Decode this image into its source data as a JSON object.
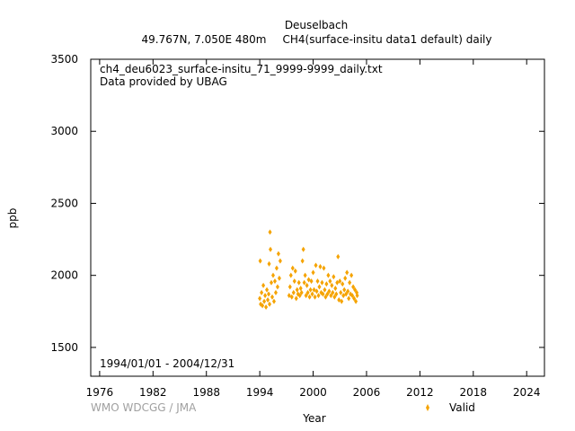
{
  "header": {
    "station": "Deuselbach",
    "location": "49.767N, 7.050E 480m",
    "dataset": "CH4(surface-insitu data1 default) daily"
  },
  "plot_notes": {
    "file": "ch4_deu6023_surface-insitu_71_9999-9999_daily.txt",
    "provider": "Data provided by UBAG",
    "period": "1994/01/01 - 2004/12/31"
  },
  "footer": {
    "credit": "WMO WDCGG / JMA"
  },
  "colors": {
    "series": "#f5a300",
    "axis": "#000000",
    "credit": "#a0a0a0"
  },
  "chart_data": {
    "type": "scatter",
    "xlabel": "Year",
    "ylabel": "ppb",
    "xlim": [
      1975,
      2026
    ],
    "ylim": [
      1300,
      3500
    ],
    "x_ticks": [
      1976,
      1982,
      1988,
      1994,
      2000,
      2006,
      2012,
      2018,
      2024
    ],
    "y_ticks": [
      1500,
      2000,
      2500,
      3000,
      3500
    ],
    "grid": false,
    "legend_position": "bottom-right",
    "series": [
      {
        "name": "Valid",
        "marker": "diamond",
        "points": [
          {
            "x": 1994.0,
            "y": 1840
          },
          {
            "x": 1994.05,
            "y": 2100
          },
          {
            "x": 1994.1,
            "y": 1800
          },
          {
            "x": 1994.2,
            "y": 1880
          },
          {
            "x": 1994.3,
            "y": 1790
          },
          {
            "x": 1994.4,
            "y": 1930
          },
          {
            "x": 1994.5,
            "y": 1820
          },
          {
            "x": 1994.6,
            "y": 1860
          },
          {
            "x": 1994.7,
            "y": 1780
          },
          {
            "x": 1994.8,
            "y": 1900
          },
          {
            "x": 1994.9,
            "y": 1830
          },
          {
            "x": 1995.0,
            "y": 1870
          },
          {
            "x": 1995.05,
            "y": 2080
          },
          {
            "x": 1995.1,
            "y": 1800
          },
          {
            "x": 1995.15,
            "y": 2300
          },
          {
            "x": 1995.2,
            "y": 2180
          },
          {
            "x": 1995.3,
            "y": 1950
          },
          {
            "x": 1995.4,
            "y": 1850
          },
          {
            "x": 1995.5,
            "y": 2000
          },
          {
            "x": 1995.6,
            "y": 1820
          },
          {
            "x": 1995.7,
            "y": 1960
          },
          {
            "x": 1995.8,
            "y": 1880
          },
          {
            "x": 1995.9,
            "y": 2050
          },
          {
            "x": 1996.0,
            "y": 1920
          },
          {
            "x": 1996.1,
            "y": 2150
          },
          {
            "x": 1996.2,
            "y": 1980
          },
          {
            "x": 1996.3,
            "y": 2100
          },
          {
            "x": 1997.3,
            "y": 1860
          },
          {
            "x": 1997.4,
            "y": 1920
          },
          {
            "x": 1997.5,
            "y": 2000
          },
          {
            "x": 1997.6,
            "y": 1850
          },
          {
            "x": 1997.7,
            "y": 2050
          },
          {
            "x": 1997.8,
            "y": 1880
          },
          {
            "x": 1997.9,
            "y": 1960
          },
          {
            "x": 1998.0,
            "y": 2030
          },
          {
            "x": 1998.1,
            "y": 1840
          },
          {
            "x": 1998.2,
            "y": 1900
          },
          {
            "x": 1998.3,
            "y": 1870
          },
          {
            "x": 1998.4,
            "y": 1950
          },
          {
            "x": 1998.5,
            "y": 1860
          },
          {
            "x": 1998.6,
            "y": 1910
          },
          {
            "x": 1998.7,
            "y": 1880
          },
          {
            "x": 1998.8,
            "y": 2100
          },
          {
            "x": 1998.9,
            "y": 2180
          },
          {
            "x": 1999.0,
            "y": 1950
          },
          {
            "x": 1999.1,
            "y": 2000
          },
          {
            "x": 1999.2,
            "y": 1860
          },
          {
            "x": 1999.3,
            "y": 1930
          },
          {
            "x": 1999.4,
            "y": 1880
          },
          {
            "x": 1999.5,
            "y": 1970
          },
          {
            "x": 1999.6,
            "y": 1850
          },
          {
            "x": 1999.7,
            "y": 1900
          },
          {
            "x": 1999.8,
            "y": 1960
          },
          {
            "x": 1999.9,
            "y": 1870
          },
          {
            "x": 2000.0,
            "y": 2020
          },
          {
            "x": 2000.1,
            "y": 1900
          },
          {
            "x": 2000.2,
            "y": 1850
          },
          {
            "x": 2000.3,
            "y": 2070
          },
          {
            "x": 2000.4,
            "y": 1890
          },
          {
            "x": 2000.5,
            "y": 1960
          },
          {
            "x": 2000.6,
            "y": 1860
          },
          {
            "x": 2000.7,
            "y": 1920
          },
          {
            "x": 2000.8,
            "y": 2060
          },
          {
            "x": 2000.9,
            "y": 1880
          },
          {
            "x": 2001.0,
            "y": 1950
          },
          {
            "x": 2001.1,
            "y": 1870
          },
          {
            "x": 2001.2,
            "y": 2050
          },
          {
            "x": 2001.3,
            "y": 1900
          },
          {
            "x": 2001.4,
            "y": 1850
          },
          {
            "x": 2001.5,
            "y": 1940
          },
          {
            "x": 2001.6,
            "y": 1870
          },
          {
            "x": 2001.7,
            "y": 2000
          },
          {
            "x": 2001.8,
            "y": 1890
          },
          {
            "x": 2001.9,
            "y": 1960
          },
          {
            "x": 2002.0,
            "y": 1860
          },
          {
            "x": 2002.1,
            "y": 1930
          },
          {
            "x": 2002.2,
            "y": 1880
          },
          {
            "x": 2002.3,
            "y": 1990
          },
          {
            "x": 2002.4,
            "y": 1850
          },
          {
            "x": 2002.5,
            "y": 1910
          },
          {
            "x": 2002.6,
            "y": 1870
          },
          {
            "x": 2002.7,
            "y": 1950
          },
          {
            "x": 2002.8,
            "y": 2130
          },
          {
            "x": 2002.9,
            "y": 1830
          },
          {
            "x": 2003.0,
            "y": 1960
          },
          {
            "x": 2003.1,
            "y": 1880
          },
          {
            "x": 2003.2,
            "y": 1820
          },
          {
            "x": 2003.3,
            "y": 1940
          },
          {
            "x": 2003.4,
            "y": 1860
          },
          {
            "x": 2003.5,
            "y": 1900
          },
          {
            "x": 2003.6,
            "y": 1980
          },
          {
            "x": 2003.7,
            "y": 1870
          },
          {
            "x": 2003.8,
            "y": 2020
          },
          {
            "x": 2003.9,
            "y": 1890
          },
          {
            "x": 2004.0,
            "y": 1840
          },
          {
            "x": 2004.1,
            "y": 1950
          },
          {
            "x": 2004.2,
            "y": 1870
          },
          {
            "x": 2004.3,
            "y": 2000
          },
          {
            "x": 2004.4,
            "y": 1860
          },
          {
            "x": 2004.5,
            "y": 1920
          },
          {
            "x": 2004.6,
            "y": 1840
          },
          {
            "x": 2004.7,
            "y": 1900
          },
          {
            "x": 2004.8,
            "y": 1820
          },
          {
            "x": 2004.9,
            "y": 1880
          },
          {
            "x": 2004.95,
            "y": 1860
          }
        ]
      }
    ]
  }
}
